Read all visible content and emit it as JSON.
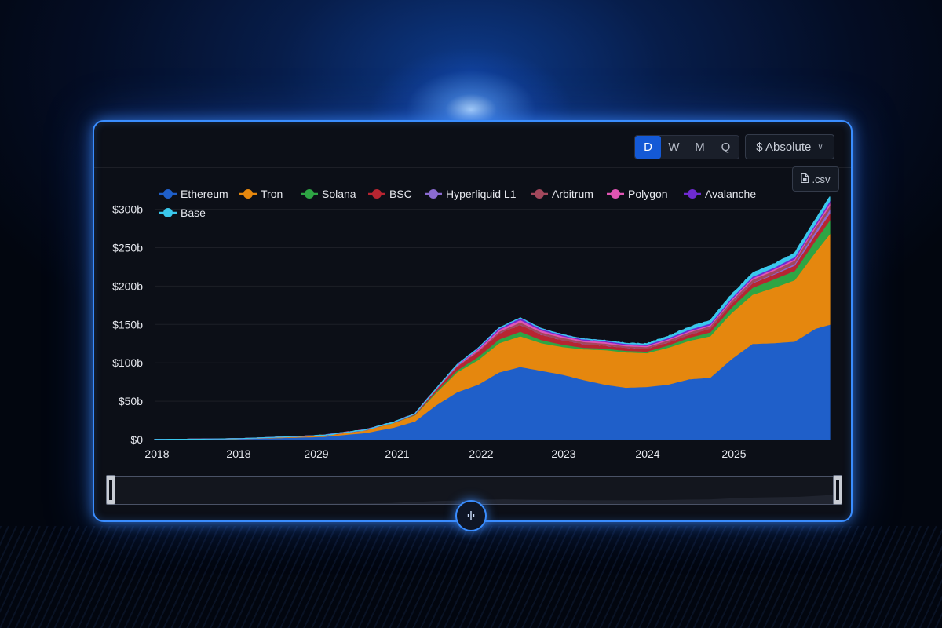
{
  "toolbar": {
    "frequencies": [
      "D",
      "W",
      "M",
      "Q"
    ],
    "active_frequency": "D",
    "mode_label": "$ Absolute",
    "csv_label": ".csv"
  },
  "icons": {
    "csv": "file-icon",
    "mode_dropdown": "chevron-down-icon",
    "drag_knob": "drag-handle-icon"
  },
  "colors": {
    "active_button": "#1459d6",
    "frame_glow": "#3a8dff"
  },
  "chart_data": {
    "type": "area",
    "stacked": true,
    "title": "",
    "xlabel": "",
    "ylabel": "",
    "y_tick_labels": [
      "$0",
      "$50b",
      "$100b",
      "$150b",
      "$200b",
      "$250b",
      "$300b"
    ],
    "x_tick_labels": [
      "2018",
      "2018",
      "2029",
      "2021",
      "2022",
      "2023",
      "2024",
      "2025"
    ],
    "ylim": [
      0,
      320
    ],
    "grid": true,
    "legend_position": "top-left",
    "x": [
      "2017-12",
      "2018-06",
      "2018-12",
      "2019-06",
      "2019-12",
      "2020-06",
      "2020-10",
      "2021-01",
      "2021-04",
      "2021-07",
      "2021-10",
      "2022-01",
      "2022-04",
      "2022-07",
      "2022-10",
      "2023-01",
      "2023-04",
      "2023-07",
      "2023-10",
      "2024-01",
      "2024-04",
      "2024-07",
      "2024-10",
      "2025-01",
      "2025-04",
      "2025-07",
      "2025-10",
      "2025-12"
    ],
    "series": [
      {
        "name": "Ethereum",
        "color": "#1f5fc9",
        "values": [
          0.3,
          0.5,
          1.0,
          2.5,
          4.0,
          9.0,
          16.0,
          24.0,
          45.0,
          62.0,
          72.0,
          88.0,
          95.0,
          90.0,
          85.0,
          78.0,
          72.0,
          68.0,
          69.0,
          72.0,
          79.0,
          81.0,
          105.0,
          125.0,
          126.0,
          128.0,
          145.0,
          150.0
        ]
      },
      {
        "name": "Tron",
        "color": "#e5870e",
        "values": [
          0.0,
          0.0,
          0.2,
          0.8,
          1.5,
          3.5,
          6.0,
          8.0,
          16.0,
          26.0,
          32.0,
          38.0,
          40.0,
          36.0,
          36.0,
          40.0,
          45.0,
          46.0,
          44.0,
          48.0,
          50.0,
          54.0,
          60.0,
          64.0,
          72.0,
          80.0,
          100.0,
          118.0
        ]
      },
      {
        "name": "Solana",
        "color": "#2ea544",
        "values": [
          0,
          0,
          0,
          0,
          0,
          0,
          0.2,
          0.5,
          1.5,
          2.5,
          4.0,
          5.0,
          6.0,
          4.0,
          3.0,
          2.0,
          2.0,
          2.0,
          2.0,
          3.0,
          4.0,
          5.0,
          7.0,
          9.0,
          11.0,
          12.0,
          15.0,
          18.0
        ]
      },
      {
        "name": "BSC",
        "color": "#b72531",
        "values": [
          0,
          0,
          0,
          0,
          0,
          0.3,
          0.5,
          1.0,
          3.0,
          5.0,
          7.0,
          8.0,
          9.0,
          7.0,
          6.0,
          5.0,
          4.0,
          4.0,
          4.0,
          4.0,
          4.0,
          5.0,
          5.0,
          6.0,
          6.0,
          7.0,
          8.0,
          9.0
        ]
      },
      {
        "name": "Hyperliquid L1",
        "color": "#8b6bd1",
        "values": [
          0,
          0,
          0,
          0,
          0,
          0,
          0,
          0,
          0,
          0,
          0,
          0,
          0,
          0,
          0,
          0,
          0,
          0,
          0,
          0,
          0,
          0,
          0,
          0.5,
          1.0,
          2.0,
          4.0,
          5.0
        ]
      },
      {
        "name": "Arbitrum",
        "color": "#a3485c",
        "values": [
          0,
          0,
          0,
          0,
          0,
          0,
          0,
          0,
          0,
          0.5,
          1.0,
          2.0,
          3.0,
          3.0,
          3.0,
          2.5,
          2.5,
          2.0,
          2.0,
          2.5,
          3.0,
          3.0,
          3.5,
          4.0,
          4.0,
          4.5,
          5.0,
          5.0
        ]
      },
      {
        "name": "Polygon",
        "color": "#e255b4",
        "values": [
          0,
          0,
          0,
          0,
          0,
          0,
          0,
          0,
          0.5,
          1.0,
          2.0,
          2.5,
          3.0,
          2.5,
          2.0,
          2.0,
          2.0,
          1.5,
          1.5,
          1.5,
          1.5,
          1.5,
          2.0,
          2.0,
          2.0,
          2.0,
          2.5,
          3.0
        ]
      },
      {
        "name": "Avalanche",
        "color": "#6f2bd1",
        "values": [
          0,
          0,
          0,
          0,
          0,
          0,
          0,
          0,
          0,
          0.5,
          1.0,
          2.0,
          2.5,
          2.0,
          1.5,
          1.5,
          1.5,
          1.5,
          1.5,
          1.5,
          2.0,
          2.0,
          2.0,
          2.0,
          2.0,
          2.5,
          2.5,
          3.0
        ]
      },
      {
        "name": "Base",
        "color": "#3ac8ec",
        "values": [
          0,
          0,
          0,
          0,
          0,
          0,
          0,
          0,
          0,
          0,
          0,
          0,
          0,
          0,
          0,
          0,
          0,
          0.5,
          1.0,
          2.0,
          3.0,
          3.5,
          4.0,
          4.0,
          4.5,
          5.0,
          5.0,
          5.0
        ]
      }
    ]
  }
}
